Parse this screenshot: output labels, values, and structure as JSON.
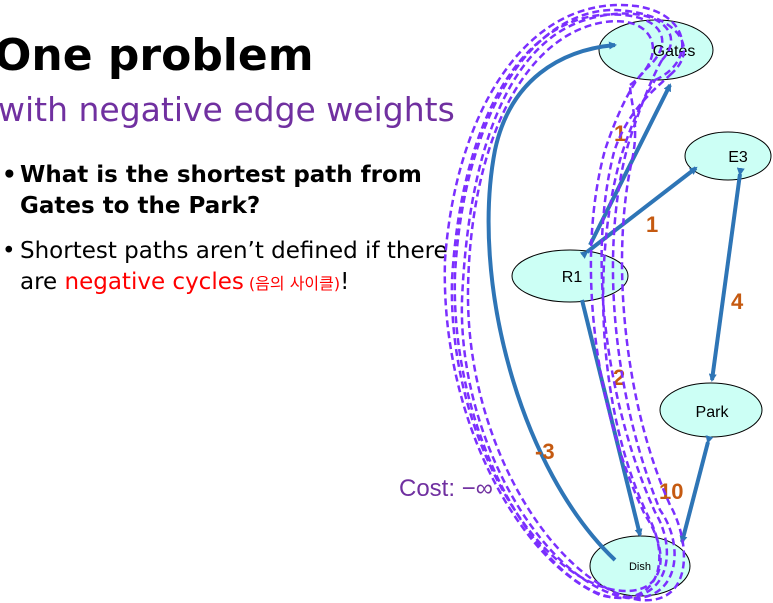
{
  "slide": {
    "title": "One problem",
    "subtitle": "with negative edge weights",
    "bullets": [
      {
        "text": "What is the shortest path from Gates to the Park?"
      },
      {
        "text_before": "Shortest paths aren’t defined if there are ",
        "highlight": "negative cycles",
        "korean": " (음의 사이클)",
        "after": "!"
      }
    ]
  },
  "graph": {
    "nodes": [
      {
        "id": "gates",
        "label": "Gates"
      },
      {
        "id": "e3",
        "label": "E3"
      },
      {
        "id": "r1",
        "label": "R1"
      },
      {
        "id": "park",
        "label": "Park"
      },
      {
        "id": "dish",
        "label": "Dish"
      }
    ],
    "edge_weights": [
      "1",
      "1",
      "4",
      "2",
      "-3",
      "10"
    ],
    "cost_label": "Cost: −∞"
  },
  "colors": {
    "edge": "#2e75b6",
    "weight": "#c55a11",
    "node_fill": "#ccfff5",
    "loop": "#7b2fff"
  }
}
